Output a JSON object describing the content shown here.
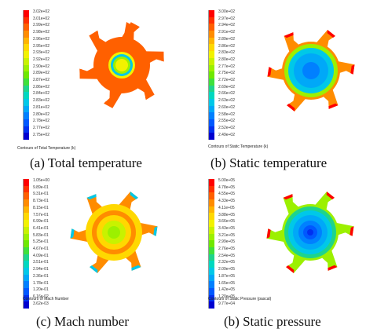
{
  "panels": [
    {
      "caption": "(a) Total temperature",
      "contour_title": "Contours of Total Temperature (k)",
      "colorbar_ticks": [
        "3.02e+02",
        "3.01e+02",
        "2.99e+02",
        "2.98e+02",
        "2.96e+02",
        "2.95e+02",
        "2.93e+02",
        "2.92e+02",
        "2.90e+02",
        "2.89e+02",
        "2.87e+02",
        "2.86e+02",
        "2.84e+02",
        "2.83e+02",
        "2.81e+02",
        "2.80e+02",
        "2.78e+02",
        "2.77e+02",
        "2.75e+02"
      ]
    },
    {
      "caption": "(b) Static temperature",
      "contour_title": "Contours of Static Temperature (k)",
      "colorbar_ticks": [
        "3.00e+02",
        "2.97e+02",
        "2.94e+02",
        "2.91e+02",
        "2.89e+02",
        "2.86e+02",
        "2.83e+02",
        "2.80e+02",
        "2.77e+02",
        "2.75e+02",
        "2.72e+02",
        "2.69e+02",
        "2.66e+02",
        "2.63e+02",
        "2.60e+02",
        "2.58e+02",
        "2.55e+02",
        "2.52e+02",
        "2.49e+02"
      ]
    },
    {
      "caption": "(c) Mach number",
      "contour_title": "Contours of Mach Number",
      "colorbar_ticks": [
        "1.05e+00",
        "9.89e-01",
        "9.31e-01",
        "8.73e-01",
        "8.15e-01",
        "7.57e-01",
        "6.99e-01",
        "6.41e-01",
        "5.83e-01",
        "5.25e-01",
        "4.67e-01",
        "4.09e-01",
        "3.51e-01",
        "2.94e-01",
        "2.36e-01",
        "1.78e-01",
        "1.20e-01",
        "6.16e-02",
        "3.62e-03"
      ]
    },
    {
      "caption": "(b) Static pressure",
      "contour_title": "Contours of Static Pressure (pascal)",
      "colorbar_ticks": [
        "5.00e+05",
        "4.78e+05",
        "4.55e+05",
        "4.33e+05",
        "4.11e+05",
        "3.88e+05",
        "3.66e+05",
        "3.43e+05",
        "3.21e+05",
        "2.99e+05",
        "2.76e+05",
        "2.54e+05",
        "2.32e+05",
        "2.09e+05",
        "1.87e+05",
        "1.65e+05",
        "1.42e+05",
        "1.20e+05",
        "9.77e+04"
      ]
    }
  ],
  "colormap": [
    "#ff0000",
    "#ff3000",
    "#ff6000",
    "#ff8c00",
    "#ffb400",
    "#ffd800",
    "#f2f200",
    "#c8f200",
    "#9cf000",
    "#6ee800",
    "#3ee03c",
    "#1ed48c",
    "#00d8c0",
    "#00c8e8",
    "#00a8f8",
    "#0080ff",
    "#0058ff",
    "#0030f0",
    "#0000d0"
  ]
}
